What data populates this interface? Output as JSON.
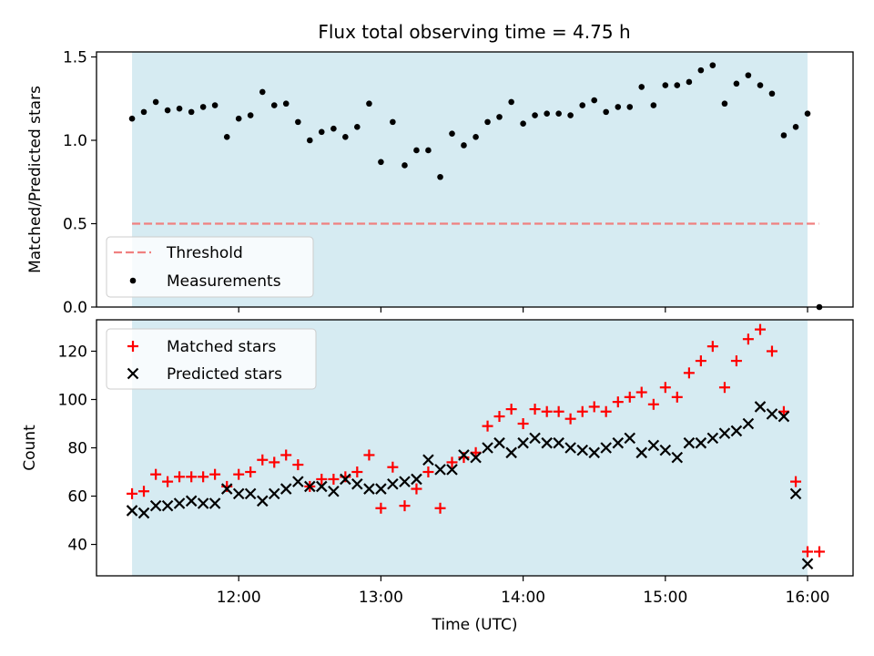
{
  "chart_data": {
    "title": "Flux total observing time = 4.75 h",
    "colors": {
      "shade": "#add8e6",
      "threshold": "#f08080",
      "measurements": "#000000",
      "matched": "#ff0000",
      "predicted": "#000000"
    },
    "x_axis": {
      "label": "Time (UTC)",
      "ticks": [
        12,
        13,
        14,
        15,
        16
      ],
      "tick_labels": [
        "12:00",
        "13:00",
        "14:00",
        "15:00",
        "16:00"
      ],
      "range": [
        11.0,
        16.32
      ]
    },
    "observing_window": [
      11.25,
      16.0
    ],
    "panels": [
      {
        "type": "scatter",
        "ylabel": "Matched/Predicted stars",
        "ylim": [
          0,
          1.53
        ],
        "yticks": [
          0.0,
          0.5,
          1.0,
          1.5
        ],
        "ytick_labels": [
          "0.0",
          "0.5",
          "1.0",
          "1.5"
        ],
        "legend": {
          "placement": "lower-left",
          "entries": [
            {
              "label": "Threshold",
              "style": "dashed-line"
            },
            {
              "label": "Measurements",
              "style": "dot"
            }
          ]
        },
        "threshold": {
          "name": "Threshold",
          "y": 0.5,
          "x": [
            11.25,
            16.08
          ]
        },
        "series": [
          {
            "name": "Measurements",
            "x": [
              11.25,
              11.333,
              11.417,
              11.5,
              11.583,
              11.667,
              11.75,
              11.833,
              11.917,
              12.0,
              12.083,
              12.167,
              12.25,
              12.333,
              12.417,
              12.5,
              12.583,
              12.667,
              12.75,
              12.833,
              12.917,
              13.0,
              13.083,
              13.167,
              13.25,
              13.333,
              13.417,
              13.5,
              13.583,
              13.667,
              13.75,
              13.833,
              13.917,
              14.0,
              14.083,
              14.167,
              14.25,
              14.333,
              14.417,
              14.5,
              14.583,
              14.667,
              14.75,
              14.833,
              14.917,
              15.0,
              15.083,
              15.167,
              15.25,
              15.333,
              15.417,
              15.5,
              15.583,
              15.667,
              15.75,
              15.833,
              15.917,
              16.0,
              16.083
            ],
            "y": [
              1.13,
              1.17,
              1.23,
              1.18,
              1.19,
              1.17,
              1.2,
              1.21,
              1.02,
              1.13,
              1.15,
              1.29,
              1.21,
              1.22,
              1.11,
              1.0,
              1.05,
              1.07,
              1.02,
              1.08,
              1.22,
              0.87,
              1.11,
              0.85,
              0.94,
              0.94,
              0.78,
              1.04,
              0.97,
              1.02,
              1.11,
              1.14,
              1.23,
              1.1,
              1.15,
              1.16,
              1.16,
              1.15,
              1.21,
              1.24,
              1.17,
              1.2,
              1.2,
              1.32,
              1.21,
              1.33,
              1.33,
              1.35,
              1.42,
              1.45,
              1.22,
              1.34,
              1.39,
              1.33,
              1.28,
              1.03,
              1.08,
              1.16,
              0.0
            ]
          }
        ]
      },
      {
        "type": "scatter",
        "ylabel": "Count",
        "ylim": [
          27,
          133
        ],
        "yticks": [
          40,
          60,
          80,
          100,
          120
        ],
        "ytick_labels": [
          "40",
          "60",
          "80",
          "100",
          "120"
        ],
        "legend": {
          "placement": "upper-left",
          "entries": [
            {
              "label": "Matched stars",
              "style": "plus"
            },
            {
              "label": "Predicted stars",
              "style": "cross"
            }
          ]
        },
        "series": [
          {
            "name": "Matched stars",
            "marker": "plus",
            "x": [
              11.25,
              11.333,
              11.417,
              11.5,
              11.583,
              11.667,
              11.75,
              11.833,
              11.917,
              12.0,
              12.083,
              12.167,
              12.25,
              12.333,
              12.417,
              12.5,
              12.583,
              12.667,
              12.75,
              12.833,
              12.917,
              13.0,
              13.083,
              13.167,
              13.25,
              13.333,
              13.417,
              13.5,
              13.583,
              13.667,
              13.75,
              13.833,
              13.917,
              14.0,
              14.083,
              14.167,
              14.25,
              14.333,
              14.417,
              14.5,
              14.583,
              14.667,
              14.75,
              14.833,
              14.917,
              15.0,
              15.083,
              15.167,
              15.25,
              15.333,
              15.417,
              15.5,
              15.583,
              15.667,
              15.75,
              15.833,
              15.917,
              16.0,
              16.083
            ],
            "y": [
              61,
              62,
              69,
              66,
              68,
              68,
              68,
              69,
              64,
              69,
              70,
              75,
              74,
              77,
              73,
              64,
              67,
              67,
              68,
              70,
              77,
              55,
              72,
              56,
              63,
              70,
              55,
              74,
              76,
              78,
              89,
              93,
              96,
              90,
              96,
              95,
              95,
              92,
              95,
              97,
              95,
              99,
              101,
              103,
              98,
              105,
              101,
              111,
              116,
              122,
              105,
              116,
              125,
              129,
              120,
              95,
              66,
              37,
              37
            ]
          },
          {
            "name": "Predicted stars",
            "marker": "cross",
            "x": [
              11.25,
              11.333,
              11.417,
              11.5,
              11.583,
              11.667,
              11.75,
              11.833,
              11.917,
              12.0,
              12.083,
              12.167,
              12.25,
              12.333,
              12.417,
              12.5,
              12.583,
              12.667,
              12.75,
              12.833,
              12.917,
              13.0,
              13.083,
              13.167,
              13.25,
              13.333,
              13.417,
              13.5,
              13.583,
              13.667,
              13.75,
              13.833,
              13.917,
              14.0,
              14.083,
              14.167,
              14.25,
              14.333,
              14.417,
              14.5,
              14.583,
              14.667,
              14.75,
              14.833,
              14.917,
              15.0,
              15.083,
              15.167,
              15.25,
              15.333,
              15.417,
              15.5,
              15.583,
              15.667,
              15.75,
              15.833,
              15.917,
              16.0
            ],
            "y": [
              54,
              53,
              56,
              56,
              57,
              58,
              57,
              57,
              63,
              61,
              61,
              58,
              61,
              63,
              66,
              64,
              64,
              62,
              67,
              65,
              63,
              63,
              65,
              66,
              67,
              75,
              71,
              71,
              77,
              76,
              80,
              82,
              78,
              82,
              84,
              82,
              82,
              80,
              79,
              78,
              80,
              82,
              84,
              78,
              81,
              79,
              76,
              82,
              82,
              84,
              86,
              87,
              90,
              97,
              94,
              93,
              61,
              32
            ]
          }
        ]
      }
    ]
  }
}
